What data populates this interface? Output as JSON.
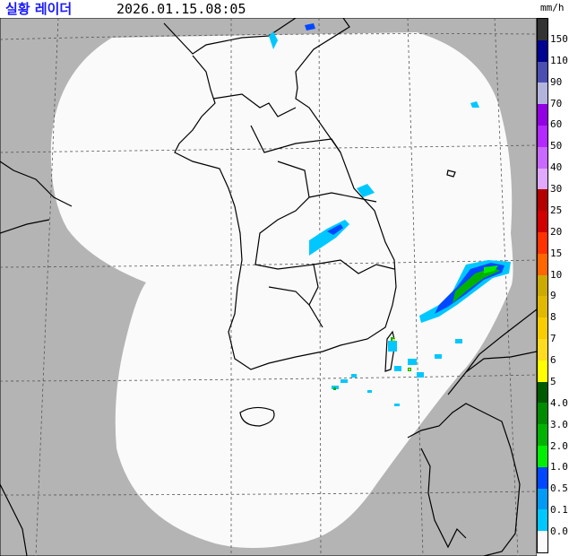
{
  "header": {
    "title": "실황 레이더",
    "timestamp": "2026.01.15.08:05",
    "unit": "mm/h"
  },
  "legend": {
    "labels": [
      "150",
      "110",
      "90",
      "70",
      "60",
      "50",
      "40",
      "30",
      "25",
      "20",
      "15",
      "10",
      "9",
      "8",
      "7",
      "6",
      "5",
      "4.0",
      "3.0",
      "2.0",
      "1.0",
      "0.5",
      "0.1",
      "0.0"
    ],
    "colors": [
      "#333333",
      "#000390",
      "#4c4eb1",
      "#b3b4de",
      "#9300e4",
      "#b329ff",
      "#c969ff",
      "#e0a9ff",
      "#b40000",
      "#d20000",
      "#ff3200",
      "#ff6600",
      "#ccaa00",
      "#e0b900",
      "#f9cd00",
      "#ffdc1f",
      "#ffff00",
      "#005a00",
      "#008c00",
      "#00b300",
      "#00ee00",
      "#0048ff",
      "#009bf5",
      "#00c8ff",
      "#fafafa"
    ]
  },
  "map": {
    "outside_color": "#b4b4b4",
    "coverage_color": "#fafafa",
    "echoes": [
      {
        "lon_lat_area": "east-sea-southeast",
        "level": "1.0-4.0",
        "color": "#00b300"
      },
      {
        "lon_lat_area": "gyeongbuk-inland",
        "level": "0.1-0.5",
        "color": "#009bf5"
      }
    ]
  }
}
